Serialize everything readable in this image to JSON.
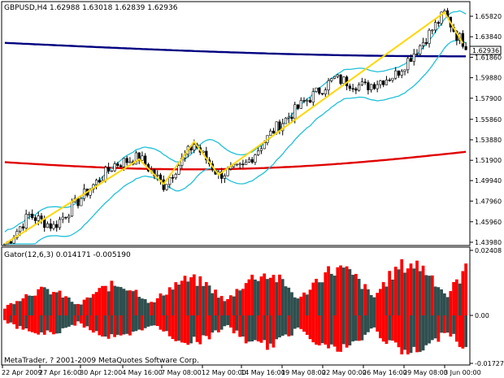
{
  "main_chart": {
    "title": "GBPUSD,H4  1.62988 1.63018 1.62839 1.62936",
    "current_price_label": "1.62936",
    "y_ticks": [
      "1.65820",
      "1.63840",
      "1.61860",
      "1.59880",
      "1.57900",
      "1.55860",
      "1.53880",
      "1.51900",
      "1.49940",
      "1.47960",
      "1.45960",
      "1.43980"
    ]
  },
  "gator": {
    "title": "Gator(12,6,3) 0.014171 -0.005190",
    "y_ticks": [
      "0.02408",
      "0.00",
      "-0.01727"
    ],
    "copyright": "MetaTrader, ? 2001-2009 MetaQuotes Software Corp."
  },
  "x_axis": {
    "labels": [
      "22 Apr 2009",
      "27 Apr 16:00",
      "30 Apr 12:00",
      "4 May 16:00",
      "7 May 08:00",
      "12 May 00:00",
      "14 May 16:00",
      "19 May 08:00",
      "22 May 00:00",
      "26 May 16:00",
      "29 May 08:00",
      "3 Jun 00:00"
    ]
  },
  "colors": {
    "background": "#ffffff",
    "up_candle": "#ffffff",
    "down_candle": "#000000",
    "trend_line": "#ffd700",
    "bollinger": "#20c0d8",
    "slow_ma": "#000080",
    "mid_ma": "#e00000",
    "gator_up": "#ff0000",
    "gator_down": "#2f4f4f"
  },
  "chart_data": {
    "type": "candlestick",
    "symbol": "GBPUSD",
    "timeframe": "H4",
    "ylim": [
      1.4398,
      1.6582
    ],
    "price_anchors": [
      [
        0,
        1.436
      ],
      [
        8,
        1.466
      ],
      [
        16,
        1.455
      ],
      [
        28,
        1.492
      ],
      [
        36,
        1.515
      ],
      [
        44,
        1.522
      ],
      [
        52,
        1.495
      ],
      [
        62,
        1.535
      ],
      [
        70,
        1.505
      ],
      [
        78,
        1.512
      ],
      [
        88,
        1.548
      ],
      [
        98,
        1.575
      ],
      [
        108,
        1.598
      ],
      [
        118,
        1.59
      ],
      [
        128,
        1.602
      ],
      [
        136,
        1.63
      ],
      [
        144,
        1.661
      ],
      [
        148,
        1.64
      ],
      [
        152,
        1.628
      ]
    ],
    "candle_count": 152,
    "gator_ylim": [
      -0.01727,
      0.02408
    ]
  }
}
